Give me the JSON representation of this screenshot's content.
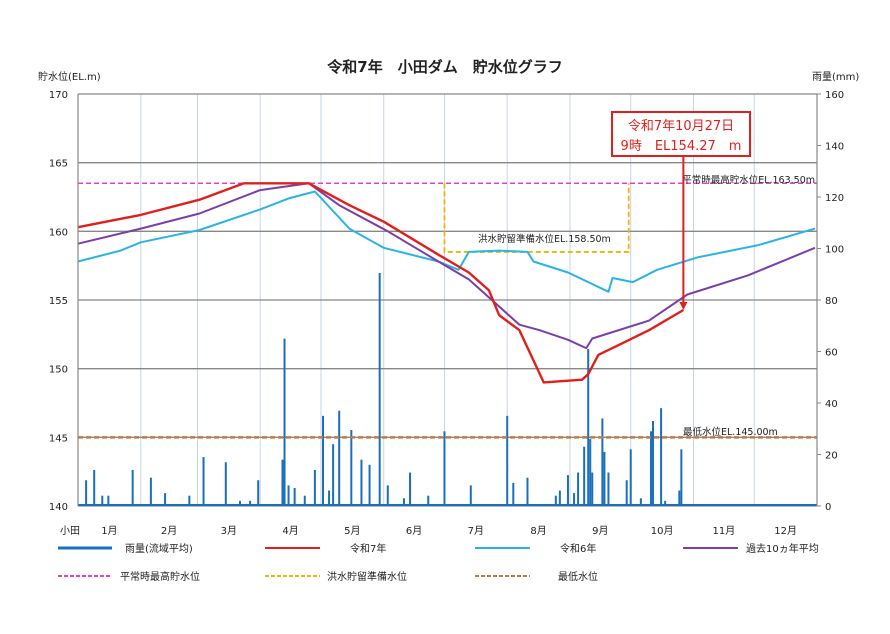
{
  "chart_data": {
    "type": "line",
    "title": "令和7年　小田ダム　貯水位グラフ",
    "ylabel_left": "貯水位(EL.m)",
    "ylabel_right": "雨量(mm)",
    "x_first_label": "小田",
    "xticks": [
      "1月",
      "2月",
      "3月",
      "4月",
      "5月",
      "6月",
      "7月",
      "8月",
      "9月",
      "10月",
      "11月",
      "12月"
    ],
    "ylim_left": [
      140,
      170
    ],
    "yticks_left": [
      140,
      145,
      150,
      155,
      160,
      165,
      170
    ],
    "ylim_right": [
      0,
      160
    ],
    "yticks_right": [
      0,
      20,
      40,
      60,
      80,
      100,
      120,
      140,
      160
    ],
    "grid": true,
    "legend_placement": "bottom",
    "colors": {
      "rain": "#1a6fbf",
      "r7": "#e0201c",
      "r6": "#2bb3e6",
      "avg10": "#7a3fa8",
      "normal_max": "#e040d0",
      "flood_prep": "#f2b400",
      "min_level": "#c07a3a",
      "grid_v": "#c8d4e4",
      "grid_h": "#888888"
    },
    "series": [
      {
        "key": "r7",
        "name": "令和7年",
        "points": [
          [
            "01-01",
            160.3
          ],
          [
            "02-01",
            161.2
          ],
          [
            "03-02",
            162.3
          ],
          [
            "03-24",
            163.5
          ],
          [
            "04-25",
            163.5
          ],
          [
            "05-15",
            161.9
          ],
          [
            "06-01",
            160.7
          ],
          [
            "06-28",
            158.3
          ],
          [
            "07-13",
            157.0
          ],
          [
            "07-23",
            155.7
          ],
          [
            "07-28",
            153.9
          ],
          [
            "08-07",
            152.8
          ],
          [
            "08-19",
            149.0
          ],
          [
            "09-07",
            149.2
          ],
          [
            "09-10",
            149.6
          ],
          [
            "09-15",
            151.0
          ],
          [
            "10-10",
            152.8
          ],
          [
            "10-27",
            154.27
          ]
        ]
      },
      {
        "key": "r6",
        "name": "令和6年",
        "points": [
          [
            "01-01",
            157.8
          ],
          [
            "01-22",
            158.6
          ],
          [
            "02-01",
            159.2
          ],
          [
            "03-02",
            160.1
          ],
          [
            "04-01",
            161.6
          ],
          [
            "04-15",
            162.4
          ],
          [
            "04-28",
            162.9
          ],
          [
            "05-15",
            160.2
          ],
          [
            "06-01",
            158.8
          ],
          [
            "06-28",
            157.8
          ],
          [
            "07-08",
            157.2
          ],
          [
            "07-13",
            158.5
          ],
          [
            "07-28",
            158.6
          ],
          [
            "08-11",
            158.5
          ],
          [
            "08-14",
            157.8
          ],
          [
            "08-31",
            157.0
          ],
          [
            "09-20",
            155.6
          ],
          [
            "09-22",
            156.6
          ],
          [
            "10-02",
            156.3
          ],
          [
            "10-14",
            157.2
          ],
          [
            "11-03",
            158.1
          ],
          [
            "12-03",
            159.0
          ],
          [
            "12-31",
            160.2
          ]
        ]
      },
      {
        "key": "avg10",
        "name": "過去10ヵ年平均",
        "points": [
          [
            "01-01",
            159.1
          ],
          [
            "02-01",
            160.2
          ],
          [
            "03-02",
            161.3
          ],
          [
            "04-01",
            163.0
          ],
          [
            "04-25",
            163.5
          ],
          [
            "05-10",
            161.9
          ],
          [
            "06-03",
            160.0
          ],
          [
            "06-28",
            157.8
          ],
          [
            "07-13",
            156.5
          ],
          [
            "08-07",
            153.2
          ],
          [
            "08-17",
            152.8
          ],
          [
            "08-31",
            152.1
          ],
          [
            "09-09",
            151.5
          ],
          [
            "09-12",
            152.2
          ],
          [
            "10-10",
            153.5
          ],
          [
            "10-29",
            155.4
          ],
          [
            "11-28",
            156.8
          ],
          [
            "12-31",
            158.8
          ]
        ]
      }
    ],
    "rainfall": {
      "name": "雨量(流域平均)",
      "points": [
        [
          "01-05",
          10
        ],
        [
          "01-09",
          14
        ],
        [
          "01-13",
          4
        ],
        [
          "01-16",
          4
        ],
        [
          "01-28",
          14
        ],
        [
          "02-06",
          11
        ],
        [
          "02-13",
          5
        ],
        [
          "02-25",
          4
        ],
        [
          "03-04",
          19
        ],
        [
          "03-15",
          17
        ],
        [
          "03-22",
          2
        ],
        [
          "03-27",
          2
        ],
        [
          "03-31",
          10
        ],
        [
          "04-12",
          18
        ],
        [
          "04-13",
          65
        ],
        [
          "04-15",
          8
        ],
        [
          "04-18",
          7
        ],
        [
          "04-23",
          4
        ],
        [
          "04-28",
          14
        ],
        [
          "05-02",
          35
        ],
        [
          "05-05",
          6
        ],
        [
          "05-07",
          24
        ],
        [
          "05-10",
          37
        ],
        [
          "05-16",
          29.5
        ],
        [
          "05-21",
          18
        ],
        [
          "05-25",
          16
        ],
        [
          "05-30",
          90.5
        ],
        [
          "06-03",
          8
        ],
        [
          "06-11",
          3
        ],
        [
          "06-14",
          13
        ],
        [
          "06-23",
          4
        ],
        [
          "07-01",
          29
        ],
        [
          "07-14",
          8
        ],
        [
          "08-01",
          35
        ],
        [
          "08-04",
          9
        ],
        [
          "08-11",
          11
        ],
        [
          "08-25",
          4
        ],
        [
          "08-27",
          6
        ],
        [
          "08-31",
          12
        ],
        [
          "09-03",
          5
        ],
        [
          "09-05",
          13
        ],
        [
          "09-08",
          23
        ],
        [
          "09-10",
          61
        ],
        [
          "09-11",
          26
        ],
        [
          "09-12",
          13
        ],
        [
          "09-17",
          34
        ],
        [
          "09-18",
          21
        ],
        [
          "09-20",
          13
        ],
        [
          "09-29",
          10
        ],
        [
          "10-01",
          22
        ],
        [
          "10-06",
          3
        ],
        [
          "10-11",
          29
        ],
        [
          "10-12",
          33
        ],
        [
          "10-16",
          38
        ],
        [
          "10-18",
          2
        ],
        [
          "10-25",
          6
        ],
        [
          "10-26",
          22
        ]
      ]
    },
    "reference_lines": {
      "normal_max": {
        "name": "平常時最高貯水位",
        "value": 163.5,
        "label": "平常時最高貯水位EL.163.50m"
      },
      "flood_prep": {
        "name": "洪水貯留準備水位",
        "value": 158.5,
        "period": [
          "07-01",
          "09-30"
        ],
        "label": "洪水貯留準備水位EL.158.50m"
      },
      "min_level": {
        "name": "最低水位",
        "value": 145.0,
        "label": "最低水位EL.145.00m"
      }
    },
    "annotation": {
      "line1": "令和7年10月27日",
      "line2": "9時　EL154.27　m",
      "date": "10-27",
      "value": 154.27
    }
  }
}
